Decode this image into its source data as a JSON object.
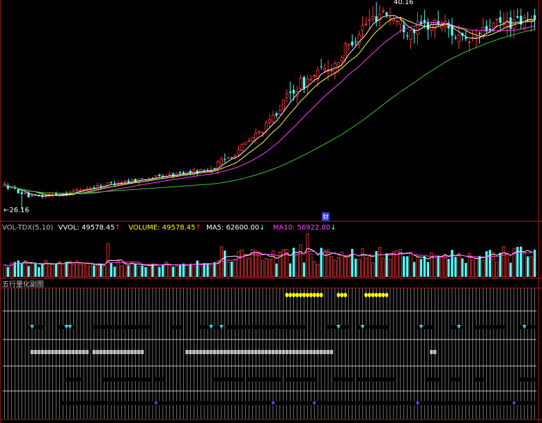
{
  "colors": {
    "background": "#000000",
    "border": "#8b1a1a",
    "up": "#ff3c3c",
    "down": "#54fcfc",
    "white": "#ffffff",
    "ma5": "#f5f5f5",
    "ma10": "#ffff55",
    "ma20": "#ff44ff",
    "ma60": "#33cc33",
    "yellow": "#ffff00",
    "cyan": "#2ccfe8",
    "gray": "#c0c0c0",
    "mark": "#4444ff"
  },
  "chart_data": [
    {
      "type": "candlestick",
      "panel": "price",
      "annotations": {
        "high_label": "40.16",
        "low_label": "←26.16",
        "event_marker": "财"
      },
      "moving_averages": [
        "ma5",
        "ma10",
        "ma20",
        "ma60"
      ],
      "bars": 155,
      "y_range": [
        26.16,
        40.16
      ]
    },
    {
      "type": "bar",
      "panel": "volume",
      "indicator_label": "VOL-TDX(5,10)",
      "readouts": [
        {
          "text": "VVOL: 49578.45",
          "arrow": "↑",
          "color": "white"
        },
        {
          "text": "VOLUME: 49578.45",
          "arrow": "↑",
          "color": "yellow"
        },
        {
          "text": "MA5: 62600.00",
          "arrow": "↓",
          "color": "white"
        },
        {
          "text": "MA10: 56922.80",
          "arrow": "↓",
          "color": "ma20"
        }
      ]
    },
    {
      "type": "signal_grid",
      "panel": "indicator",
      "title": "五行量化副图",
      "rows": [
        {
          "color": "yellow",
          "runs": [
            [
              82,
              92
            ],
            [
              97,
              99
            ],
            [
              105,
              111
            ]
          ]
        },
        {
          "color": "red",
          "runs": [
            [
              7,
              11
            ],
            [
              16,
              20
            ],
            [
              26,
              39
            ],
            [
              40,
              42
            ],
            [
              49,
              51
            ],
            [
              57,
              62
            ],
            [
              65,
              80
            ],
            [
              81,
              87
            ],
            [
              94,
              100
            ],
            [
              103,
              111
            ],
            [
              120,
              124
            ],
            [
              130,
              133
            ],
            [
              137,
              145
            ],
            [
              150,
              154
            ]
          ]
        },
        {
          "color": "gray",
          "runs": [
            [
              8,
              24
            ],
            [
              26,
              40
            ],
            [
              53,
              60
            ],
            [
              61,
              95
            ],
            [
              124,
              125
            ]
          ]
        },
        {
          "color": "red",
          "runs": [
            [
              18,
              22
            ],
            [
              29,
              37
            ],
            [
              38,
              42
            ],
            [
              44,
              46
            ],
            [
              61,
              66
            ],
            [
              67,
              69
            ],
            [
              71,
              80
            ],
            [
              82,
              90
            ],
            [
              96,
              101
            ],
            [
              103,
              105
            ],
            [
              106,
              113
            ],
            [
              123,
              126
            ],
            [
              130,
              132
            ],
            [
              137,
              139
            ],
            [
              150,
              154
            ]
          ]
        },
        {
          "color": "red",
          "runs": [
            [
              17,
              155
            ]
          ]
        }
      ],
      "cyan_marks": [
        8,
        18,
        19,
        60,
        63,
        97,
        104,
        121,
        132,
        151
      ]
    }
  ]
}
